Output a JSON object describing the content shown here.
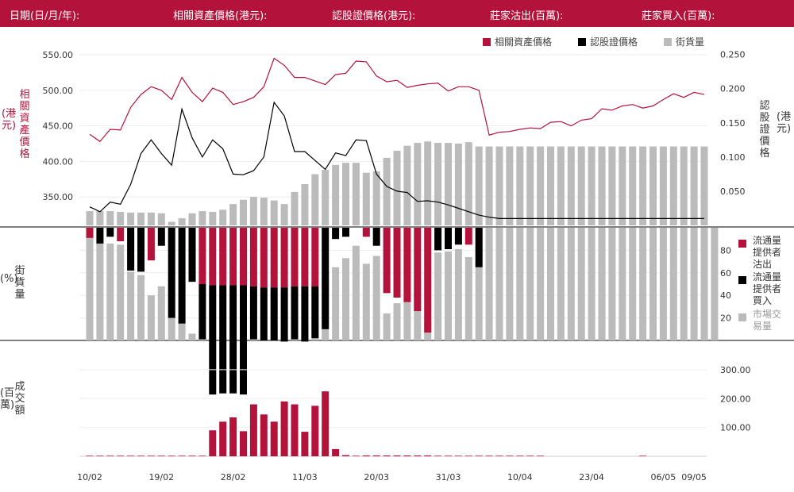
{
  "header": {
    "date": "日期(日/月/年):",
    "underlying": "相關資產價格(港元):",
    "warrant": "認股證價格(港元):",
    "mm_sell": "莊家沽出(百萬):",
    "mm_buy": "莊家買入(百萬):"
  },
  "legend": {
    "underlying": "相關資產價格",
    "warrant": "認股證價格",
    "outstanding": "街貨量",
    "lp_sell": "流通量提供者沽出",
    "lp_buy": "流通量提供者買入",
    "market": "市場交易量"
  },
  "axis_labels": {
    "left_top": "相關資產價格",
    "left_top_unit": "(港元)",
    "right_top": "認股證價格",
    "right_top_unit": "(港元)",
    "mid": "街貨量",
    "mid_unit": "(%)",
    "bottom": "成交額",
    "bottom_unit": "(百萬)"
  },
  "colors": {
    "red": "#b3123a",
    "black": "#000000",
    "grey": "#bbbbbb",
    "header": "#b3123a"
  },
  "chart_data": {
    "type": "line",
    "x_ticks": [
      "10/02",
      "19/02",
      "28/02",
      "11/03",
      "20/03",
      "31/03",
      "10/04",
      "23/04",
      "06/05",
      "09/05"
    ],
    "x_tick_index": [
      0,
      7,
      14,
      21,
      28,
      35,
      42,
      49,
      56,
      59
    ],
    "left_y_ticks": [
      "350.00",
      "400.00",
      "450.00",
      "500.00",
      "550.00"
    ],
    "right_y_ticks": [
      "0.050",
      "0.100",
      "0.150",
      "0.200",
      "0.250"
    ],
    "pct_ticks": [
      "20",
      "40",
      "60",
      "80"
    ],
    "turnover_ticks": [
      "100.00",
      "200.00",
      "300.00"
    ],
    "left_ylim": [
      310,
      560
    ],
    "right_ylim": [
      0.0,
      0.26
    ],
    "pct_ylim": [
      0,
      100
    ],
    "turnover_ylim": [
      0,
      330
    ],
    "series": [
      {
        "name": "相關資產價格",
        "axis": "left",
        "values": [
          438,
          428,
          445,
          444,
          476,
          494,
          505,
          500,
          487,
          518,
          497,
          484,
          503,
          497,
          480,
          484,
          490,
          505,
          545,
          535,
          518,
          518,
          513,
          508,
          522,
          524,
          541,
          540,
          520,
          512,
          514,
          504,
          507,
          509,
          510,
          499,
          505,
          505,
          500,
          437,
          441,
          442,
          445,
          447,
          446,
          455,
          456,
          450,
          458,
          460,
          474,
          472,
          478,
          480,
          475,
          478,
          487,
          495,
          490,
          497,
          494
        ]
      },
      {
        "name": "認股證價格",
        "axis": "right",
        "values": [
          0.027,
          0.02,
          0.034,
          0.031,
          0.06,
          0.105,
          0.125,
          0.105,
          0.088,
          0.17,
          0.128,
          0.1,
          0.125,
          0.112,
          0.075,
          0.074,
          0.08,
          0.1,
          0.18,
          0.16,
          0.108,
          0.108,
          0.095,
          0.082,
          0.106,
          0.102,
          0.125,
          0.124,
          0.075,
          0.057,
          0.05,
          0.048,
          0.035,
          0.036,
          0.034,
          0.03,
          0.025,
          0.02,
          0.015,
          0.012,
          0.01,
          0.01,
          0.01,
          0.01,
          0.01,
          0.01,
          0.01,
          0.01,
          0.01,
          0.01,
          0.01,
          0.01,
          0.01,
          0.01,
          0.01,
          0.01,
          0.01,
          0.01,
          0.01,
          0.01,
          0.01
        ]
      },
      {
        "name": "街貨量",
        "axis": "left",
        "type": "bar",
        "values": [
          330,
          330,
          330,
          329,
          328,
          328,
          328,
          327,
          315,
          320,
          327,
          330,
          329,
          332,
          340,
          346,
          350,
          349,
          345,
          340,
          357,
          368,
          382,
          388,
          395,
          398,
          398,
          384,
          386,
          405,
          415,
          422,
          426,
          428,
          426,
          426,
          425,
          427,
          421,
          421,
          421,
          421,
          421,
          421,
          421,
          421,
          421,
          421,
          421,
          421,
          421,
          421,
          421,
          421,
          421,
          421,
          421,
          421,
          421,
          421,
          421
        ]
      },
      {
        "name": "流通量提供者沽出",
        "type": "bar",
        "values": [
          8,
          0,
          0,
          8,
          0,
          0,
          0,
          25,
          15,
          0,
          0,
          0,
          0,
          0,
          0,
          0,
          0,
          0,
          0,
          0,
          0,
          0,
          0,
          0,
          0,
          0,
          0,
          0,
          0,
          0,
          0,
          0,
          0,
          0,
          0,
          0,
          0,
          0,
          0,
          0,
          0,
          0,
          0,
          0,
          0,
          0,
          0,
          0,
          0,
          0,
          0,
          0,
          0,
          0,
          0,
          0,
          0,
          0,
          0,
          0,
          0,
          0
        ]
      },
      {
        "name": "流通量提供者買入",
        "type": "bar",
        "values": [
          0,
          15,
          0,
          0,
          30,
          0,
          0,
          0,
          0,
          0,
          0,
          0,
          0,
          0,
          0,
          0,
          0,
          0,
          0,
          0,
          0,
          0,
          0,
          0,
          0,
          0,
          0,
          0,
          0,
          0,
          0,
          0,
          0,
          0,
          0,
          0,
          0,
          0,
          0,
          0,
          0,
          0,
          0,
          0,
          0,
          0,
          0,
          0,
          0,
          0,
          0,
          0,
          0,
          0,
          0,
          0,
          0,
          0,
          0,
          0,
          0,
          0
        ]
      },
      {
        "name": "成交額",
        "type": "bar",
        "values": [
          2,
          2,
          2,
          2,
          2,
          2,
          2,
          2,
          2,
          2,
          2,
          2,
          90,
          120,
          135,
          87,
          180,
          145,
          120,
          190,
          180,
          85,
          175,
          225,
          25,
          4,
          2,
          3,
          3,
          3,
          3,
          3,
          3,
          3,
          2,
          2,
          2,
          2,
          2,
          2,
          2,
          2,
          2,
          2,
          2,
          0,
          0,
          0,
          0,
          0,
          0,
          0,
          0,
          0,
          2,
          0,
          0,
          0,
          0,
          0,
          0
        ]
      }
    ],
    "mid_bars": {
      "market": [
        93,
        90,
        86,
        85,
        61,
        58,
        40,
        48,
        21,
        16,
        6,
        4,
        2,
        3,
        3,
        2,
        2,
        2,
        3,
        2,
        5,
        10,
        50,
        56,
        65,
        73,
        84,
        68,
        75,
        24,
        33,
        34,
        56,
        17,
        78,
        79,
        81,
        74,
        100,
        100,
        100,
        100,
        100,
        100,
        100,
        100,
        100,
        100,
        100,
        100,
        100,
        100,
        100,
        100,
        100,
        100,
        100,
        100,
        100,
        100,
        100,
        100
      ],
      "lp_sell": [
        9,
        0,
        0,
        12,
        0,
        0,
        29,
        0,
        0,
        0,
        0,
        50,
        51,
        51,
        51,
        51,
        52,
        53,
        53,
        53,
        52,
        52,
        52,
        0,
        0,
        0,
        0,
        8,
        0,
        58,
        62,
        66,
        74,
        93,
        0,
        0,
        0,
        15,
        0,
        0,
        0,
        0,
        0,
        0,
        0,
        0,
        0,
        0,
        0,
        0,
        0,
        0,
        0,
        0,
        0,
        0,
        0,
        0,
        0,
        0,
        0,
        0
      ],
      "lp_buy": [
        0,
        14,
        8,
        0,
        38,
        39,
        0,
        16,
        80,
        85,
        48,
        49,
        97,
        96,
        96,
        97,
        47,
        47,
        47,
        48,
        47,
        49,
        46,
        90,
        10,
        8,
        0,
        0,
        16,
        0,
        0,
        0,
        0,
        0,
        20,
        19,
        15,
        0,
        35,
        0,
        0,
        0,
        0,
        0,
        0,
        0,
        0,
        0,
        0,
        0,
        0,
        0,
        0,
        0,
        0,
        0,
        0,
        0,
        0,
        0,
        0,
        0
      ]
    }
  }
}
